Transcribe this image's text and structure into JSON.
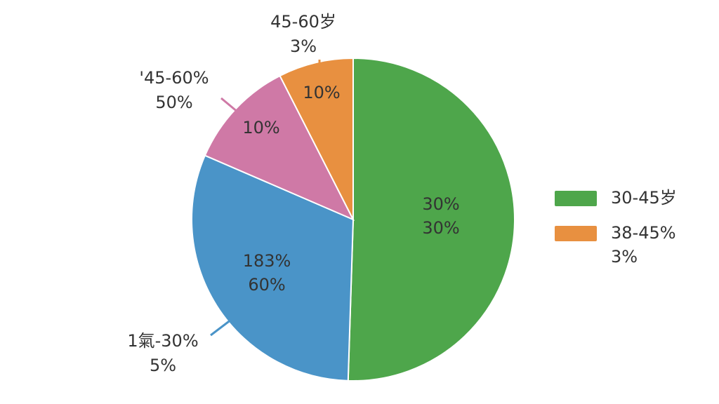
{
  "chart_data": {
    "type": "pie",
    "values": [
      50.5,
      31,
      11,
      7.5
    ],
    "colors": [
      "#4ea64b",
      "#4a94c8",
      "#cf79a6",
      "#e89040"
    ],
    "slice_labels": [
      [
        "30%",
        "30%"
      ],
      [
        "183%",
        "60%"
      ],
      [
        "10%"
      ],
      [
        "10%"
      ]
    ],
    "callouts": [
      {
        "lines": [
          "45-60岁",
          "3%"
        ],
        "color": "#e89040"
      },
      {
        "lines": [
          "'45-60%",
          "50%"
        ],
        "color": "#cf79a6"
      },
      {
        "lines": [
          "1氣-30%",
          "5%"
        ],
        "color": "#4a94c8"
      }
    ],
    "legend": [
      {
        "lines": [
          "30-45岁"
        ],
        "color": "#4ea64b"
      },
      {
        "lines": [
          "38-45%",
          "3%"
        ],
        "color": "#e89040"
      }
    ]
  }
}
